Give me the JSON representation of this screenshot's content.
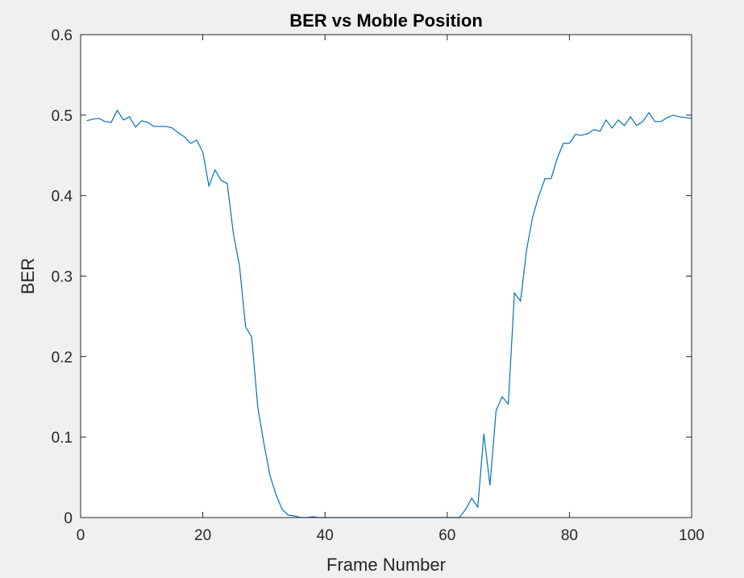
{
  "chart_data": {
    "type": "line",
    "title": "BER vs Moble Position",
    "xlabel": "Frame Number",
    "ylabel": "BER",
    "xlim": [
      0,
      100
    ],
    "ylim": [
      0,
      0.6
    ],
    "x_ticks": [
      0,
      20,
      40,
      60,
      80,
      100
    ],
    "y_ticks": [
      0,
      0.1,
      0.2,
      0.3,
      0.4,
      0.5,
      0.6
    ],
    "x_tick_labels": [
      "0",
      "20",
      "40",
      "60",
      "80",
      "100"
    ],
    "y_tick_labels": [
      "0",
      "0.1",
      "0.2",
      "0.3",
      "0.4",
      "0.5",
      "0.6"
    ],
    "grid": false,
    "box": true,
    "colors": {
      "figure_background": "#f0f0f0",
      "axes_background": "#ffffff",
      "axis": "#262626",
      "line": "#0072bd"
    },
    "series": [
      {
        "x": [
          1,
          2,
          3,
          4,
          5,
          6,
          7,
          8,
          9,
          10,
          11,
          12,
          13,
          14,
          15,
          16,
          17,
          18,
          19,
          20,
          21,
          22,
          23,
          24,
          25,
          26,
          27,
          28,
          29,
          30,
          31,
          32,
          33,
          34,
          35,
          36,
          37,
          38,
          39,
          40,
          41,
          42,
          43,
          44,
          45,
          46,
          47,
          48,
          49,
          50,
          51,
          52,
          53,
          54,
          55,
          56,
          57,
          58,
          59,
          60,
          61,
          62,
          63,
          64,
          65,
          66,
          67,
          68,
          69,
          70,
          71,
          72,
          73,
          74,
          75,
          76,
          77,
          78,
          79,
          80,
          81,
          82,
          83,
          84,
          85,
          86,
          87,
          88,
          89,
          90,
          91,
          92,
          93,
          94,
          95,
          96,
          97,
          98,
          99,
          100
        ],
        "y": [
          0.493,
          0.495,
          0.496,
          0.492,
          0.491,
          0.506,
          0.494,
          0.498,
          0.485,
          0.493,
          0.491,
          0.486,
          0.486,
          0.486,
          0.484,
          0.478,
          0.473,
          0.465,
          0.469,
          0.454,
          0.412,
          0.432,
          0.419,
          0.415,
          0.353,
          0.313,
          0.237,
          0.224,
          0.137,
          0.092,
          0.052,
          0.028,
          0.01,
          0.003,
          0.002,
          0.0,
          0.0,
          0.001,
          0.0,
          0.0,
          0.0,
          0.0,
          0.0,
          0.0,
          0.0,
          0.0,
          0.0,
          0.0,
          0.0,
          0.0,
          0.0,
          0.0,
          0.0,
          0.0,
          0.0,
          0.0,
          0.0,
          0.0,
          0.0,
          0.0,
          0.0,
          0.0,
          0.01,
          0.024,
          0.013,
          0.104,
          0.04,
          0.133,
          0.15,
          0.141,
          0.279,
          0.269,
          0.333,
          0.374,
          0.4,
          0.421,
          0.421,
          0.446,
          0.465,
          0.465,
          0.476,
          0.475,
          0.477,
          0.482,
          0.48,
          0.494,
          0.484,
          0.494,
          0.487,
          0.498,
          0.487,
          0.492,
          0.503,
          0.492,
          0.492,
          0.497,
          0.5,
          0.498,
          0.497,
          0.496
        ]
      }
    ]
  }
}
